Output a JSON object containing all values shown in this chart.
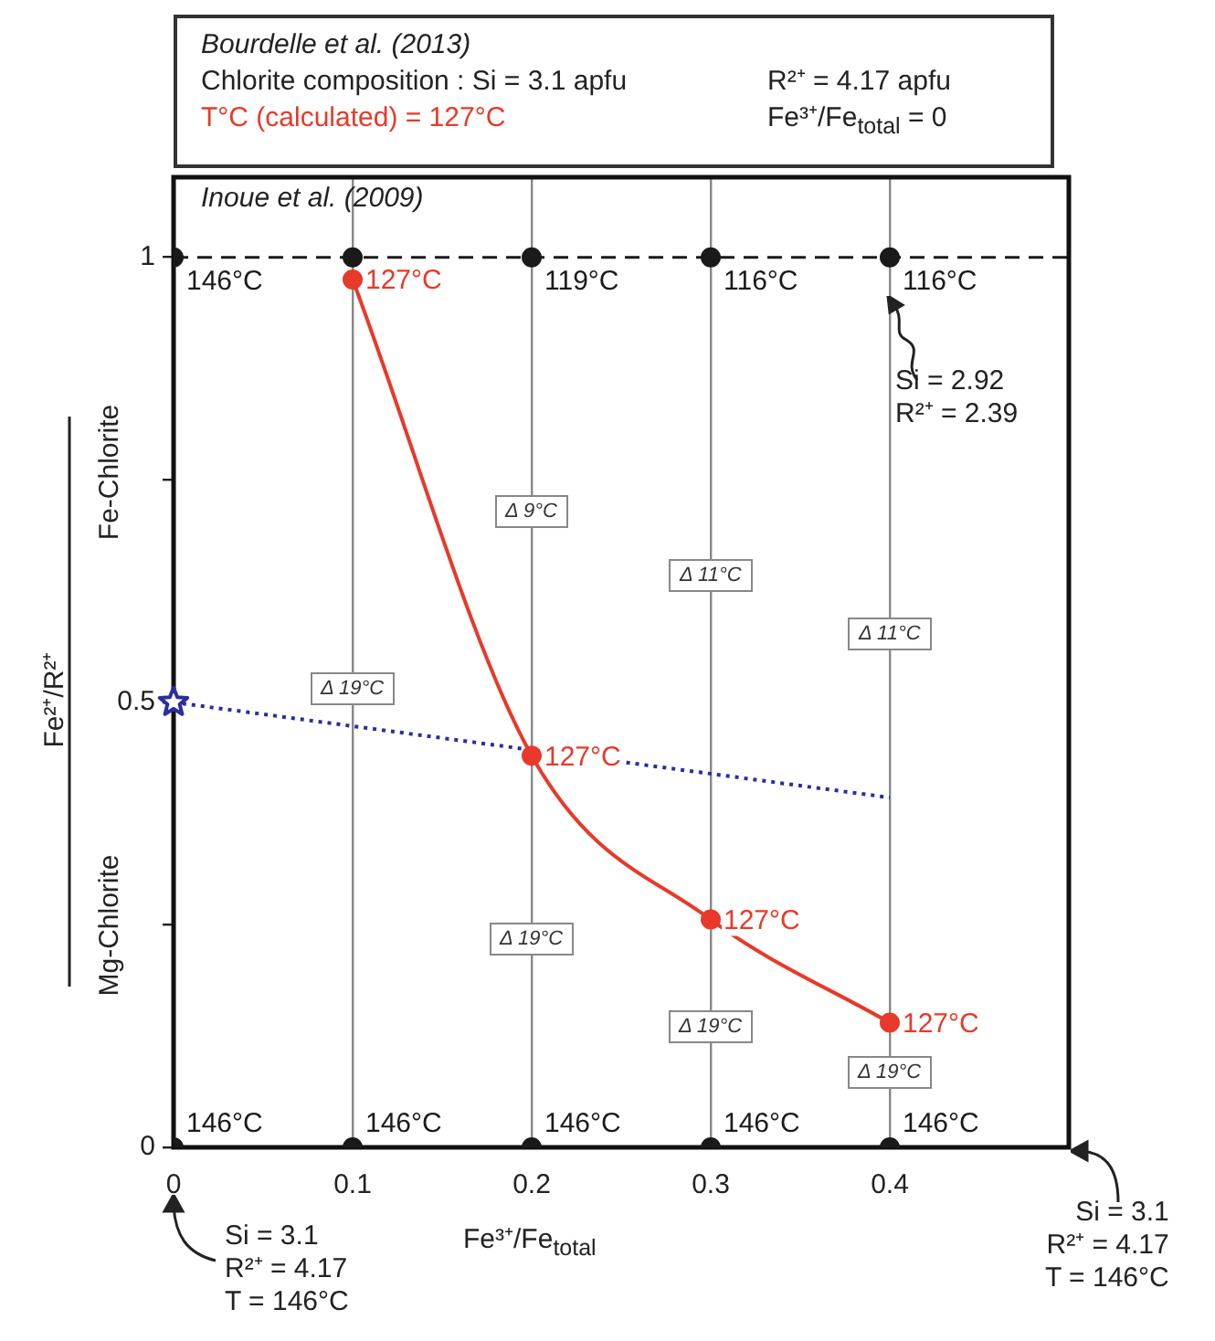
{
  "chart_data": {
    "type": "scatter",
    "title": "Bourdelle et al. (2013)",
    "subtitle": "T°C (calculated) = 127°C",
    "xlabel": "Fe³⁺/Fe$_{total}$",
    "ylabel": "Fe²⁺/R²⁺",
    "xlim": [
      0,
      0.5
    ],
    "ylim": [
      0,
      1.09
    ],
    "xticks": [
      0,
      0.1,
      0.2,
      0.3,
      0.4
    ],
    "yticks": [
      0,
      {
        "value": 0.25,
        "label": null
      },
      0.5,
      {
        "value": 0.75,
        "label": null
      },
      1
    ],
    "grid": "x",
    "legend": false,
    "ref_lines": [
      {
        "axis": "y",
        "value": 1,
        "color": "#1a1a1a",
        "line_style": "dashed"
      }
    ],
    "series": [
      {
        "type": "scatter",
        "color": "#1a1a1a",
        "marker": "circle",
        "x": [
          0,
          0.1,
          0.2,
          0.3,
          0.4
        ],
        "values": [
          1,
          1,
          1,
          1,
          1
        ]
      },
      {
        "type": "scatter",
        "color": "#1a1a1a",
        "marker": "circle",
        "x": [
          0,
          0.1,
          0.2,
          0.3,
          0.4
        ],
        "values": [
          0,
          0,
          0,
          0,
          0
        ]
      },
      {
        "type": "line",
        "color": "#e8392a",
        "marker": "circle",
        "line_style": "solid",
        "x": [
          0.1,
          0.2,
          0.3,
          0.4
        ],
        "values": [
          0.975,
          0.44,
          0.256,
          0.14
        ]
      },
      {
        "type": "line",
        "color": "#2b2e9e",
        "marker": "none",
        "line_style": "dotted",
        "x": [
          0,
          0.4
        ],
        "values": [
          0.5,
          0.393
        ]
      },
      {
        "type": "scatter",
        "color": "#2b2e9e",
        "marker": "star",
        "x": [
          0
        ],
        "values": [
          0.5
        ]
      }
    ],
    "annotations": [
      "Chlorite composition : Si = 3.1 apfu",
      "R²⁺ = 4.17 apfu",
      "Fe³⁺/Fe$_{total}$ = 0",
      "Inoue et al. (2009)",
      "Si = 2.92\nR²⁺ = 2.39",
      "Si = 3.1\nR²⁺ = 4.17\nT = 146°C",
      "Si = 3.1\nR²⁺ = 4.17\nT = 146°C",
      "Fe-Chlorite",
      "Mg-Chlorite",
      {
        "text": "146°C",
        "x": 0,
        "y": 1
      },
      {
        "text": "119°C",
        "x": 0.2,
        "y": 1
      },
      {
        "text": "116°C",
        "x": 0.3,
        "y": 1
      },
      {
        "text": "116°C",
        "x": 0.4,
        "y": 1
      },
      {
        "text": "146°C",
        "x": 0,
        "y": 0
      },
      {
        "text": "146°C",
        "x": 0.1,
        "y": 0
      },
      {
        "text": "146°C",
        "x": 0.2,
        "y": 0
      },
      {
        "text": "146°C",
        "x": 0.3,
        "y": 0
      },
      {
        "text": "146°C",
        "x": 0.4,
        "y": 0
      },
      {
        "text": "127°C",
        "x": 0.1,
        "y": 0.975
      },
      {
        "text": "127°C",
        "x": 0.2,
        "y": 0.44
      },
      {
        "text": "127°C",
        "x": 0.3,
        "y": 0.256
      },
      {
        "text": "127°C",
        "x": 0.4,
        "y": 0.14
      },
      "Δ 9°C",
      "Δ 11°C",
      "Δ 11°C",
      "Δ 19°C",
      "Δ 19°C",
      "Δ 19°C",
      "Δ 19°C"
    ]
  }
}
